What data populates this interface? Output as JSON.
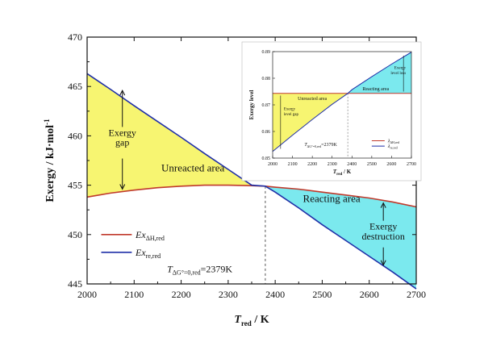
{
  "chart_data": [
    {
      "type": "line",
      "x": [
        2000,
        2050,
        2100,
        2150,
        2200,
        2250,
        2300,
        2350,
        2379,
        2400,
        2450,
        2500,
        2550,
        2600,
        2650,
        2700
      ],
      "xlim": [
        2000,
        2700
      ],
      "ylim": [
        445,
        470
      ],
      "xticks": [
        2000,
        2100,
        2200,
        2300,
        2400,
        2500,
        2600,
        2700
      ],
      "yticks": [
        445,
        450,
        455,
        460,
        465,
        470
      ],
      "xlabel": {
        "main": "T",
        "sub": "red",
        "unit": " / K"
      },
      "ylabel": {
        "main": "Exergy / kJ·mol",
        "sup": "-1"
      },
      "series": [
        {
          "name": {
            "main": "Ex",
            "sub": "ΔH,red"
          },
          "color": "#c0392b",
          "values": [
            453.8,
            454.2,
            454.5,
            454.75,
            454.9,
            455.0,
            455.0,
            454.95,
            454.9,
            454.8,
            454.6,
            454.3,
            454.0,
            453.7,
            453.3,
            452.8
          ]
        },
        {
          "name": {
            "main": "Ex",
            "sub": "re,red"
          },
          "color": "#1f2fa8",
          "values": [
            466.3,
            464.7,
            463.05,
            461.45,
            459.85,
            458.2,
            456.6,
            455.0,
            454.9,
            454.3,
            452.7,
            451.0,
            449.4,
            447.8,
            446.2,
            444.5
          ]
        }
      ],
      "fills": {
        "unreacted": "#f7f571",
        "reacting": "#7be9ee"
      },
      "annotations": {
        "exergy_gap": [
          "Exergy",
          "gap"
        ],
        "unreacted_area": "Unreacted area",
        "reacting_area": "Reacting area",
        "exergy_destruction": [
          "Exergy",
          "destruction"
        ],
        "crossover": {
          "main": "T",
          "sub": "ΔG°=0,red",
          "value": "=2379K"
        }
      },
      "legend_position": "lower-left",
      "vline_x": 2379
    },
    {
      "type": "line",
      "x": [
        2000,
        2100,
        2200,
        2300,
        2379,
        2400,
        2500,
        2600,
        2700
      ],
      "xlim": [
        2000,
        2700
      ],
      "ylim": [
        0.85,
        0.89
      ],
      "xticks": [
        2000,
        2100,
        2200,
        2300,
        2400,
        2500,
        2600,
        2700
      ],
      "yticks": [
        0.85,
        0.86,
        0.87,
        0.88,
        0.89
      ],
      "xlabel": {
        "main": "T",
        "sub": "red",
        "unit": " / K"
      },
      "ylabel": {
        "main": "Exergy level"
      },
      "series": [
        {
          "name": {
            "main": "λ",
            "sub": "ΔH,red"
          },
          "color": "#c0392b",
          "values": [
            0.8743,
            0.8743,
            0.8743,
            0.8743,
            0.8743,
            0.8743,
            0.8743,
            0.8743,
            0.8743
          ]
        },
        {
          "name": {
            "main": "λ",
            "sub": "re,red"
          },
          "color": "#1f2fa8",
          "values": [
            0.8525,
            0.8586,
            0.8645,
            0.8702,
            0.8743,
            0.8757,
            0.8806,
            0.8853,
            0.8898
          ]
        }
      ],
      "annotations": {
        "unreacted_area": "Unreacted area",
        "reacting_area": "Reacting area",
        "exergy_level_gap": [
          "Exergy",
          "level gap"
        ],
        "exergy_level_loss": [
          "Exergy",
          "level loss"
        ],
        "crossover": {
          "main": "T",
          "sub": "ΔG°=0,red",
          "value": "=2379K"
        }
      },
      "legend_position": "lower-right",
      "vline_x": 2379
    }
  ]
}
